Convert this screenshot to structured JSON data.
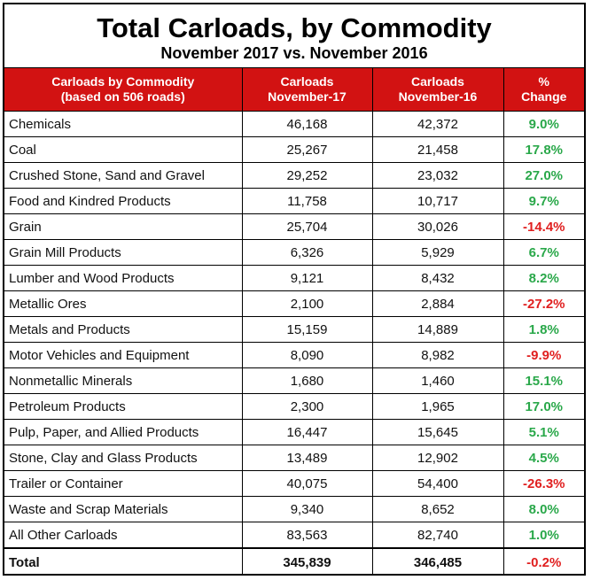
{
  "title": "Total Carloads, by Commodity",
  "subtitle": "November 2017 vs. November 2016",
  "header": {
    "col1_line1": "Carloads by Commodity",
    "col1_line2": "(based on 506 roads)",
    "col2_line1": "Carloads",
    "col2_line2": "November-17",
    "col3_line1": "Carloads",
    "col3_line2": "November-16",
    "col4_line1": "%",
    "col4_line2": "Change"
  },
  "colors": {
    "header_bg": "#d21212",
    "positive": "#2aa84a",
    "negative": "#e01f1f"
  },
  "rows": [
    {
      "commodity": "Chemicals",
      "nov17": "46,168",
      "nov16": "42,372",
      "change": "9.0%",
      "dir": "pos"
    },
    {
      "commodity": "Coal",
      "nov17": "25,267",
      "nov16": "21,458",
      "change": "17.8%",
      "dir": "pos"
    },
    {
      "commodity": "Crushed Stone, Sand and Gravel",
      "nov17": "29,252",
      "nov16": "23,032",
      "change": "27.0%",
      "dir": "pos"
    },
    {
      "commodity": "Food and Kindred Products",
      "nov17": "11,758",
      "nov16": "10,717",
      "change": "9.7%",
      "dir": "pos"
    },
    {
      "commodity": "Grain",
      "nov17": "25,704",
      "nov16": "30,026",
      "change": "-14.4%",
      "dir": "neg"
    },
    {
      "commodity": "Grain Mill Products",
      "nov17": "6,326",
      "nov16": "5,929",
      "change": "6.7%",
      "dir": "pos"
    },
    {
      "commodity": "Lumber and Wood Products",
      "nov17": "9,121",
      "nov16": "8,432",
      "change": "8.2%",
      "dir": "pos"
    },
    {
      "commodity": "Metallic Ores",
      "nov17": "2,100",
      "nov16": "2,884",
      "change": "-27.2%",
      "dir": "neg"
    },
    {
      "commodity": "Metals and Products",
      "nov17": "15,159",
      "nov16": "14,889",
      "change": "1.8%",
      "dir": "pos"
    },
    {
      "commodity": "Motor Vehicles and Equipment",
      "nov17": "8,090",
      "nov16": "8,982",
      "change": "-9.9%",
      "dir": "neg"
    },
    {
      "commodity": "Nonmetallic Minerals",
      "nov17": "1,680",
      "nov16": "1,460",
      "change": "15.1%",
      "dir": "pos"
    },
    {
      "commodity": "Petroleum Products",
      "nov17": "2,300",
      "nov16": "1,965",
      "change": "17.0%",
      "dir": "pos"
    },
    {
      "commodity": "Pulp, Paper, and Allied Products",
      "nov17": "16,447",
      "nov16": "15,645",
      "change": "5.1%",
      "dir": "pos"
    },
    {
      "commodity": "Stone, Clay and Glass Products",
      "nov17": "13,489",
      "nov16": "12,902",
      "change": "4.5%",
      "dir": "pos"
    },
    {
      "commodity": "Trailer or Container",
      "nov17": "40,075",
      "nov16": "54,400",
      "change": "-26.3%",
      "dir": "neg"
    },
    {
      "commodity": "Waste and Scrap Materials",
      "nov17": "9,340",
      "nov16": "8,652",
      "change": "8.0%",
      "dir": "pos"
    },
    {
      "commodity": "All Other Carloads",
      "nov17": "83,563",
      "nov16": "82,740",
      "change": "1.0%",
      "dir": "pos"
    }
  ],
  "total": {
    "commodity": "Total",
    "nov17": "345,839",
    "nov16": "346,485",
    "change": "-0.2%",
    "dir": "neg"
  }
}
